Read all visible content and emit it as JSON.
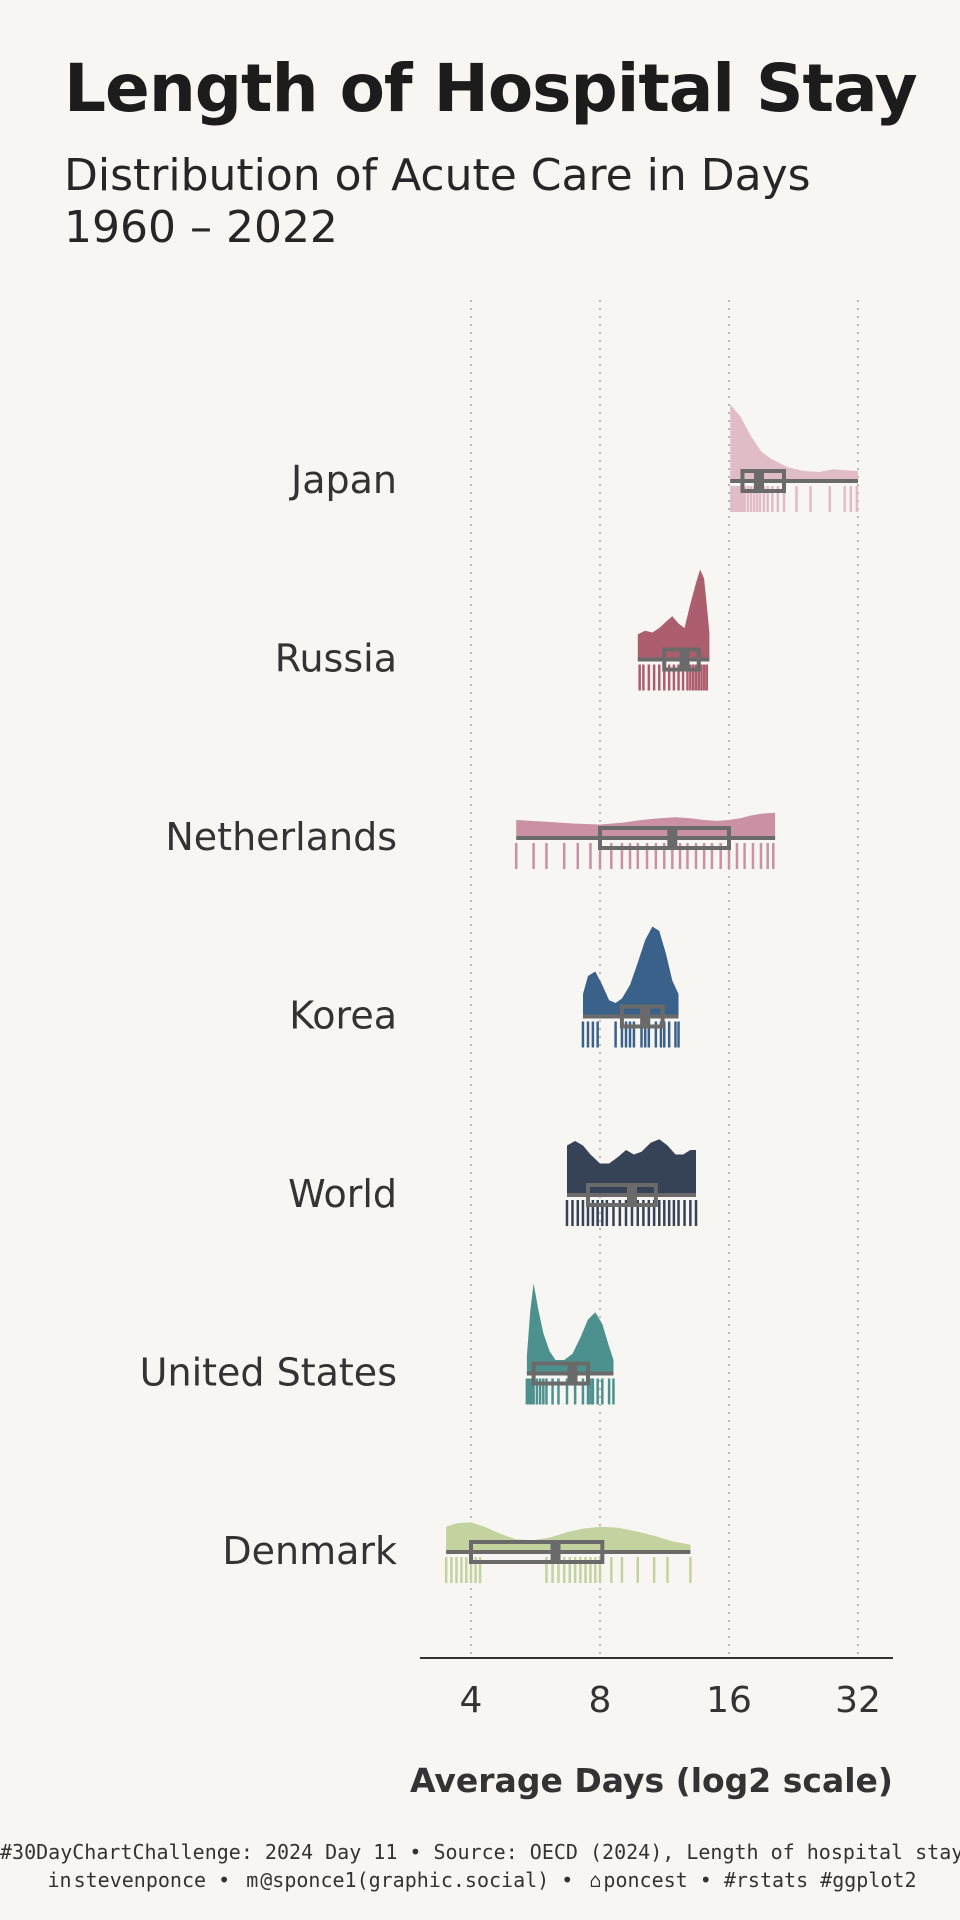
{
  "title": "Length of Hospital Stay",
  "subtitle": "Distribution of Acute Care in Days",
  "subtitle_years": "1960 – 2022",
  "caption": {
    "line1": "#30DayChartChallenge: 2024 Day 11 • Source: OECD (2024), Length of hospital stay",
    "linkedin_icon": "linkedin-icon",
    "linkedin_handle": "stevenponce",
    "mastodon_icon": "mastodon-icon",
    "mastodon_handle": "@sponce1(graphic.social)",
    "github_icon": "github-icon",
    "github_handle": "poncest",
    "tags": "#rstats #ggplot2",
    "sep": "•"
  },
  "chart_data": {
    "type": "raincloud",
    "xlabel": "Average Days (log2 scale)",
    "x_scale": "log2",
    "x_ticks": [
      4,
      8,
      16,
      32
    ],
    "x_tick_labels": [
      "4",
      "8",
      "16",
      "32"
    ],
    "xlim": [
      3.2,
      37
    ],
    "grid": "vertical dotted at ticks",
    "categories": [
      "Japan",
      "Russia",
      "Netherlands",
      "Korea",
      "World",
      "United States",
      "Denmark"
    ],
    "series": [
      {
        "name": "Japan",
        "color": "#e0bcc7",
        "min": 16.1,
        "q1": 17.2,
        "median": 18.8,
        "q3": 21.5,
        "max": 32.0,
        "density_x": [
          16.1,
          17,
          18,
          19,
          20,
          22,
          24,
          26,
          28,
          30,
          32
        ],
        "density_y": [
          0.85,
          0.72,
          0.5,
          0.33,
          0.25,
          0.15,
          0.11,
          0.1,
          0.13,
          0.12,
          0.11
        ],
        "points": [
          16.2,
          16.4,
          16.6,
          16.8,
          17.0,
          17.2,
          17.4,
          17.7,
          18.0,
          18.3,
          18.6,
          18.9,
          19.3,
          19.7,
          20.2,
          20.8,
          21.5,
          23.0,
          24.8,
          27.5,
          29.8,
          30.8,
          31.8
        ]
      },
      {
        "name": "Russia",
        "color": "#ad5e6e",
        "min": 9.8,
        "q1": 11.3,
        "median": 12.6,
        "q3": 13.6,
        "max": 14.4,
        "density_x": [
          9.8,
          10.2,
          10.6,
          11.0,
          11.4,
          11.8,
          12.2,
          12.6,
          13.0,
          13.4,
          13.7,
          14.0,
          14.2,
          14.4
        ],
        "density_y": [
          0.28,
          0.32,
          0.3,
          0.35,
          0.42,
          0.48,
          0.4,
          0.35,
          0.62,
          0.85,
          1.0,
          0.9,
          0.6,
          0.3
        ],
        "points": [
          9.9,
          10.1,
          10.4,
          10.7,
          11.0,
          11.3,
          11.6,
          11.9,
          12.2,
          12.5,
          12.8,
          13.0,
          13.2,
          13.4,
          13.6,
          13.8,
          14.0,
          14.2
        ]
      },
      {
        "name": "Netherlands",
        "color": "#c991a3",
        "min": 5.1,
        "q1": 8.0,
        "median": 11.8,
        "q3": 16.0,
        "max": 20.5,
        "density_x": [
          5.1,
          6,
          7,
          8,
          9,
          10,
          11,
          12,
          13,
          14,
          15,
          16,
          17,
          18,
          19,
          20.5
        ],
        "density_y": [
          0.2,
          0.18,
          0.16,
          0.15,
          0.17,
          0.2,
          0.22,
          0.23,
          0.22,
          0.2,
          0.19,
          0.2,
          0.22,
          0.25,
          0.27,
          0.28
        ],
        "points": [
          5.1,
          5.6,
          6.0,
          6.6,
          7.1,
          7.6,
          8.0,
          8.5,
          9.0,
          9.4,
          9.8,
          10.3,
          10.8,
          11.3,
          11.8,
          12.3,
          12.8,
          13.4,
          14.0,
          14.6,
          15.3,
          16.0,
          16.7,
          17.4,
          18.2,
          19.0,
          19.7,
          20.3
        ]
      },
      {
        "name": "Korea",
        "color": "#3a6189",
        "min": 7.3,
        "q1": 9.0,
        "median": 10.2,
        "q3": 11.2,
        "max": 12.2,
        "density_x": [
          7.3,
          7.5,
          7.8,
          8.1,
          8.4,
          8.7,
          9.0,
          9.4,
          9.8,
          10.2,
          10.6,
          11.0,
          11.4,
          11.8,
          12.2
        ],
        "density_y": [
          0.25,
          0.45,
          0.5,
          0.35,
          0.18,
          0.15,
          0.2,
          0.35,
          0.6,
          0.85,
          1.0,
          0.95,
          0.7,
          0.4,
          0.25
        ],
        "points": [
          7.3,
          7.5,
          7.7,
          7.9,
          8.7,
          9.0,
          9.2,
          9.4,
          9.6,
          10.0,
          10.2,
          10.4,
          10.8,
          11.1,
          11.3,
          11.6,
          12.0,
          12.2
        ]
      },
      {
        "name": "World",
        "color": "#364357",
        "min": 6.7,
        "q1": 7.5,
        "median": 9.5,
        "q3": 10.8,
        "max": 13.4,
        "density_x": [
          6.7,
          7.0,
          7.3,
          7.6,
          8.0,
          8.4,
          8.8,
          9.2,
          9.6,
          10.0,
          10.5,
          11.0,
          11.5,
          12.0,
          12.5,
          13.0,
          13.4
        ],
        "density_y": [
          0.55,
          0.6,
          0.55,
          0.45,
          0.35,
          0.35,
          0.42,
          0.5,
          0.45,
          0.48,
          0.58,
          0.62,
          0.55,
          0.45,
          0.45,
          0.5,
          0.5
        ],
        "points": [
          6.7,
          6.9,
          7.1,
          7.3,
          7.5,
          7.7,
          7.9,
          8.1,
          8.3,
          8.6,
          8.9,
          9.2,
          9.5,
          9.8,
          10.1,
          10.4,
          10.7,
          11.0,
          11.3,
          11.6,
          11.9,
          12.2,
          12.6,
          13.0,
          13.4
        ]
      },
      {
        "name": "United States",
        "color": "#4d918e",
        "min": 5.4,
        "q1": 5.6,
        "median": 6.9,
        "q3": 7.5,
        "max": 8.6,
        "density_x": [
          5.4,
          5.5,
          5.6,
          5.75,
          5.9,
          6.1,
          6.3,
          6.6,
          6.9,
          7.2,
          7.5,
          7.8,
          8.1,
          8.4,
          8.6
        ],
        "density_y": [
          0.2,
          0.7,
          1.0,
          0.7,
          0.45,
          0.25,
          0.15,
          0.15,
          0.22,
          0.4,
          0.6,
          0.68,
          0.55,
          0.3,
          0.15
        ],
        "points": [
          5.4,
          5.45,
          5.5,
          5.55,
          5.6,
          5.7,
          5.8,
          5.9,
          6.0,
          6.2,
          6.4,
          6.7,
          7.0,
          7.3,
          7.5,
          7.6,
          7.7,
          7.9,
          8.1,
          8.4,
          8.6
        ]
      },
      {
        "name": "Denmark",
        "color": "#c3d29e",
        "min": 3.5,
        "q1": 4.0,
        "median": 6.3,
        "q3": 8.1,
        "max": 13.0,
        "density_x": [
          3.5,
          3.7,
          4.0,
          4.3,
          4.7,
          5.1,
          5.6,
          6.1,
          6.7,
          7.3,
          8.0,
          8.8,
          9.7,
          10.7,
          11.8,
          13.0
        ],
        "density_y": [
          0.28,
          0.32,
          0.33,
          0.28,
          0.2,
          0.14,
          0.13,
          0.16,
          0.22,
          0.26,
          0.28,
          0.27,
          0.23,
          0.18,
          0.12,
          0.08
        ],
        "points": [
          3.5,
          3.6,
          3.7,
          3.8,
          3.9,
          4.0,
          4.1,
          4.2,
          6.0,
          6.2,
          6.4,
          6.6,
          6.8,
          7.0,
          7.2,
          7.4,
          7.6,
          7.8,
          8.0,
          8.5,
          9.0,
          9.8,
          10.7,
          11.5,
          13.0
        ]
      }
    ]
  }
}
